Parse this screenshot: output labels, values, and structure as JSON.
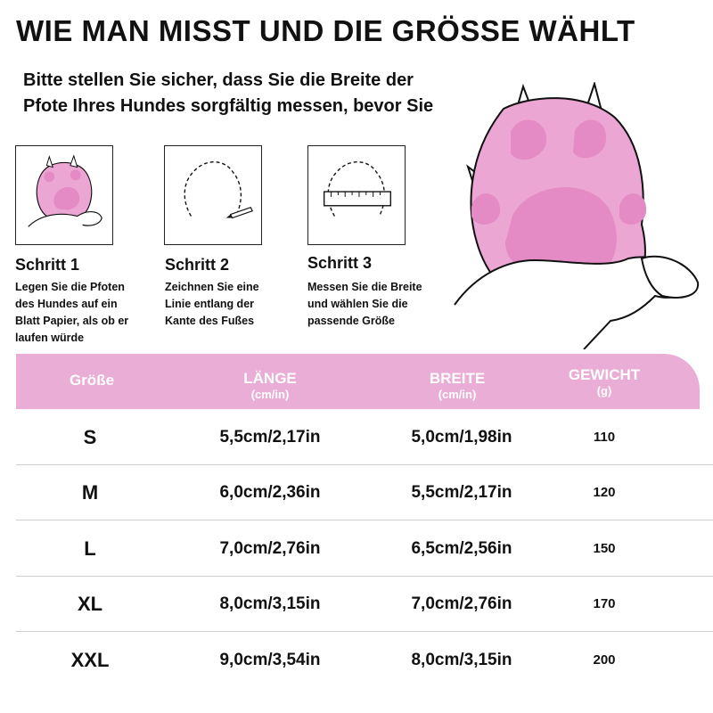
{
  "title": "WIE MAN MISST UND DIE GRÖSSE WÄHLT",
  "intro": {
    "line1": "Bitte stellen Sie sicher, dass Sie die Breite der",
    "line2": "Pfote Ihres Hundes sorgfältig messen, bevor Sie"
  },
  "steps": [
    {
      "title": "Schritt 1",
      "desc": [
        "Legen Sie die Pfoten",
        "des Hundes auf ein",
        "Blatt Papier, als ob er",
        "laufen würde"
      ],
      "icon": "paw-on-paper-icon"
    },
    {
      "title": "Schritt 2",
      "desc": [
        "Zeichnen Sie eine",
        "Linie entlang der",
        "Kante des Fußes"
      ],
      "icon": "paw-outline-pencil-icon"
    },
    {
      "title": "Schritt 3",
      "desc": [
        "Messen Sie die Breite",
        "und wählen Sie die",
        "passende Größe"
      ],
      "icon": "paw-outline-ruler-icon"
    }
  ],
  "colors": {
    "accent": "#eaaed6",
    "paw_pink": "#eba6d3",
    "pad_pink": "#e48ac4"
  },
  "table": {
    "headers": {
      "size": "Größe",
      "length": "LÄNGE",
      "length_unit": "(cm/in)",
      "width": "BREITE",
      "width_unit": "(cm/in)",
      "weight": "GEWICHT",
      "weight_unit": "(g)"
    },
    "rows": [
      {
        "size": "S",
        "length": "5,5cm/2,17in",
        "width": "5,0cm/1,98in",
        "weight": "110"
      },
      {
        "size": "M",
        "length": "6,0cm/2,36in",
        "width": "5,5cm/2,17in",
        "weight": "120"
      },
      {
        "size": "L",
        "length": "7,0cm/2,76in",
        "width": "6,5cm/2,56in",
        "weight": "150"
      },
      {
        "size": "XL",
        "length": "8,0cm/3,15in",
        "width": "7,0cm/2,76in",
        "weight": "170"
      },
      {
        "size": "XXL",
        "length": "9,0cm/3,54in",
        "width": "8,0cm/3,15in",
        "weight": "200"
      }
    ]
  }
}
